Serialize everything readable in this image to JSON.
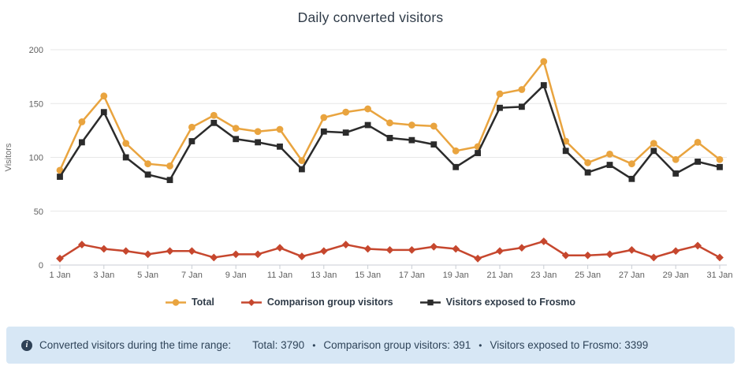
{
  "title": "Daily converted visitors",
  "chart_data": {
    "type": "line",
    "title": "Daily converted visitors",
    "xlabel": "",
    "ylabel": "Visitors",
    "ylim": [
      0,
      200
    ],
    "yticks": [
      0,
      50,
      100,
      150,
      200
    ],
    "x_tick_interval": 2,
    "grid": "horizontal",
    "legend_position": "bottom",
    "categories": [
      "1 Jan",
      "2 Jan",
      "3 Jan",
      "4 Jan",
      "5 Jan",
      "6 Jan",
      "7 Jan",
      "8 Jan",
      "9 Jan",
      "10 Jan",
      "11 Jan",
      "12 Jan",
      "13 Jan",
      "14 Jan",
      "15 Jan",
      "16 Jan",
      "17 Jan",
      "18 Jan",
      "19 Jan",
      "20 Jan",
      "21 Jan",
      "22 Jan",
      "23 Jan",
      "24 Jan",
      "25 Jan",
      "26 Jan",
      "27 Jan",
      "28 Jan",
      "29 Jan",
      "30 Jan",
      "31 Jan"
    ],
    "series": [
      {
        "name": "Total",
        "color": "#E9A43F",
        "marker": "circle",
        "values": [
          88,
          133,
          157,
          113,
          94,
          92,
          128,
          139,
          127,
          124,
          126,
          97,
          137,
          142,
          145,
          132,
          130,
          129,
          106,
          110,
          159,
          163,
          189,
          115,
          95,
          103,
          94,
          113,
          98,
          114,
          98
        ]
      },
      {
        "name": "Comparison group visitors",
        "color": "#C6472E",
        "marker": "diamond",
        "values": [
          6,
          19,
          15,
          13,
          10,
          13,
          13,
          7,
          10,
          10,
          16,
          8,
          13,
          19,
          15,
          14,
          14,
          17,
          15,
          6,
          13,
          16,
          22,
          9,
          9,
          10,
          14,
          7,
          13,
          18,
          7
        ]
      },
      {
        "name": "Visitors exposed to Frosmo",
        "color": "#2B2B2B",
        "marker": "square",
        "values": [
          82,
          114,
          142,
          100,
          84,
          79,
          115,
          132,
          117,
          114,
          110,
          89,
          124,
          123,
          130,
          118,
          116,
          112,
          91,
          104,
          146,
          147,
          167,
          106,
          86,
          93,
          80,
          106,
          85,
          96,
          91
        ]
      }
    ],
    "axis_text_color": "#606060",
    "gridline_color": "#e7e7e7",
    "axis_line_color": "#c9ced4"
  },
  "footer": {
    "info_glyph": "i",
    "label": "Converted visitors during the time range:",
    "stat_total": "Total: 3790",
    "stat_comparison": "Comparison group visitors: 391",
    "stat_exposed": "Visitors exposed to Frosmo: 3399",
    "separator": "•"
  }
}
